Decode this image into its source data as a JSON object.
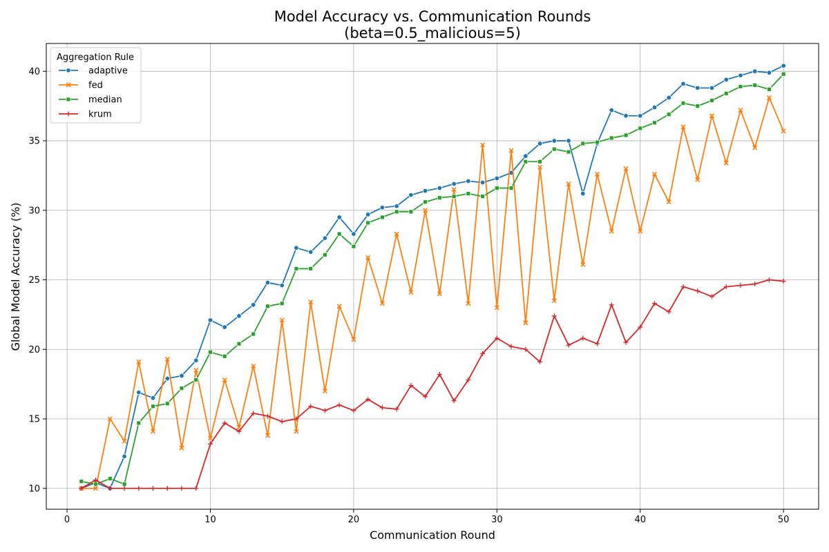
{
  "chart_data": {
    "type": "line",
    "title": "Model Accuracy vs. Communication Rounds",
    "subtitle": "(beta=0.5_malicious=5)",
    "xlabel": "Communication Round",
    "ylabel": "Global Model Accuracy (%)",
    "xlim": [
      -1.45,
      52.45
    ],
    "ylim": [
      8.5,
      42.0
    ],
    "xticks": [
      0,
      10,
      20,
      30,
      40,
      50
    ],
    "yticks": [
      10,
      15,
      20,
      25,
      30,
      35,
      40
    ],
    "grid": true,
    "legend": {
      "title": "Aggregation Rule",
      "position": "top-left"
    },
    "x": [
      1,
      2,
      3,
      4,
      5,
      6,
      7,
      8,
      9,
      10,
      11,
      12,
      13,
      14,
      15,
      16,
      17,
      18,
      19,
      20,
      21,
      22,
      23,
      24,
      25,
      26,
      27,
      28,
      29,
      30,
      31,
      32,
      33,
      34,
      35,
      36,
      37,
      38,
      39,
      40,
      41,
      42,
      43,
      44,
      45,
      46,
      47,
      48,
      49,
      50
    ],
    "series": [
      {
        "name": "adaptive",
        "color": "#1f77b4",
        "marker": "circle",
        "values": [
          10.0,
          10.4,
          10.0,
          12.3,
          16.9,
          16.5,
          17.9,
          18.1,
          19.2,
          22.1,
          21.6,
          22.4,
          23.2,
          24.8,
          24.6,
          27.3,
          27.0,
          28.0,
          29.5,
          28.3,
          29.7,
          30.2,
          30.3,
          31.1,
          31.4,
          31.6,
          31.9,
          32.1,
          32.0,
          32.3,
          32.7,
          33.9,
          34.8,
          35.0,
          35.0,
          31.2,
          34.8,
          37.2,
          36.8,
          36.8,
          37.4,
          38.1,
          39.1,
          38.8,
          38.8,
          39.4,
          39.7,
          40.0,
          39.9,
          40.4
        ]
      },
      {
        "name": "fed",
        "color": "#ff7f0e",
        "marker": "x",
        "values": [
          10.0,
          10.0,
          15.0,
          13.4,
          19.1,
          14.1,
          19.3,
          12.9,
          18.5,
          13.6,
          17.8,
          14.4,
          18.8,
          13.8,
          22.1,
          14.1,
          23.4,
          17.0,
          23.1,
          20.7,
          26.6,
          23.3,
          28.3,
          24.1,
          30.0,
          24.0,
          31.5,
          23.3,
          34.7,
          23.0,
          34.3,
          21.9,
          33.1,
          23.5,
          31.9,
          26.1,
          32.6,
          28.5,
          33.0,
          28.5,
          32.6,
          30.6,
          36.0,
          32.2,
          36.8,
          33.4,
          37.2,
          34.5,
          38.1,
          35.7
        ]
      },
      {
        "name": "median",
        "color": "#2ca02c",
        "marker": "square",
        "values": [
          10.5,
          10.3,
          10.7,
          10.3,
          14.7,
          15.9,
          16.1,
          17.2,
          17.8,
          19.8,
          19.5,
          20.4,
          21.1,
          23.1,
          23.3,
          25.8,
          25.8,
          26.8,
          28.3,
          27.4,
          29.1,
          29.5,
          29.9,
          29.9,
          30.6,
          30.9,
          31.0,
          31.2,
          31.0,
          31.6,
          31.6,
          33.5,
          33.5,
          34.4,
          34.2,
          34.8,
          34.9,
          35.2,
          35.4,
          35.9,
          36.3,
          36.9,
          37.7,
          37.5,
          37.9,
          38.4,
          38.9,
          39.0,
          38.7,
          39.8
        ]
      },
      {
        "name": "krum",
        "color": "#d62728",
        "marker": "plus",
        "values": [
          10.0,
          10.6,
          10.0,
          10.0,
          10.0,
          10.0,
          10.0,
          10.0,
          10.0,
          13.2,
          14.7,
          14.1,
          15.4,
          15.2,
          14.8,
          15.0,
          15.9,
          15.6,
          16.0,
          15.6,
          16.4,
          15.8,
          15.7,
          17.4,
          16.6,
          18.2,
          16.3,
          17.8,
          19.7,
          20.8,
          20.2,
          20.0,
          19.1,
          22.4,
          20.3,
          20.8,
          20.4,
          23.2,
          20.5,
          21.6,
          23.3,
          22.7,
          24.5,
          24.2,
          23.8,
          24.5,
          24.6,
          24.7,
          25.0,
          24.9
        ]
      }
    ]
  }
}
